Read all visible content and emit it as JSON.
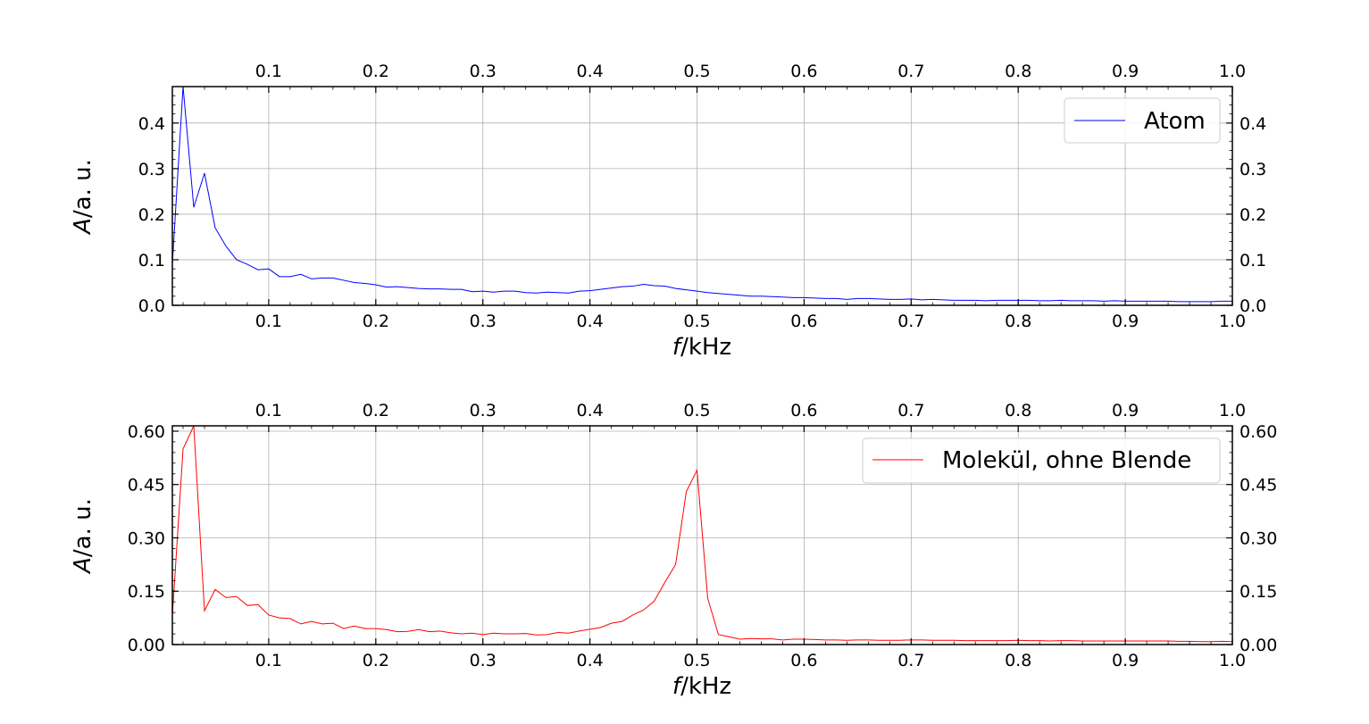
{
  "chart_data": [
    {
      "type": "line",
      "xlabel_italic": "f",
      "xlabel_rest": "/kHz",
      "ylabel_italic": "A",
      "ylabel_rest": "/a. u.",
      "xlim": [
        0.01,
        1.0
      ],
      "ylim": [
        0,
        0.48
      ],
      "xticks": [
        0.1,
        0.2,
        0.3,
        0.4,
        0.5,
        0.6,
        0.7,
        0.8,
        0.9,
        1.0
      ],
      "xtick_labels": [
        "0.1",
        "0.2",
        "0.3",
        "0.4",
        "0.5",
        "0.6",
        "0.7",
        "0.8",
        "0.9",
        "1.0"
      ],
      "yticks": [
        0.0,
        0.1,
        0.2,
        0.3,
        0.4
      ],
      "ytick_labels": [
        "0.0",
        "0.1",
        "0.2",
        "0.3",
        "0.4"
      ],
      "grid": true,
      "legend_position": "top-right",
      "color": "#0000ff",
      "series": [
        {
          "name": "Atom",
          "x": [
            0.01,
            0.02,
            0.03,
            0.04,
            0.05,
            0.06,
            0.07,
            0.08,
            0.09,
            0.1,
            0.11,
            0.12,
            0.13,
            0.14,
            0.15,
            0.16,
            0.17,
            0.18,
            0.19,
            0.2,
            0.21,
            0.22,
            0.23,
            0.24,
            0.25,
            0.26,
            0.27,
            0.28,
            0.29,
            0.3,
            0.31,
            0.32,
            0.33,
            0.34,
            0.35,
            0.36,
            0.37,
            0.38,
            0.39,
            0.4,
            0.41,
            0.42,
            0.43,
            0.44,
            0.45,
            0.46,
            0.47,
            0.48,
            0.49,
            0.5,
            0.51,
            0.52,
            0.53,
            0.54,
            0.55,
            0.56,
            0.57,
            0.58,
            0.59,
            0.6,
            0.61,
            0.62,
            0.63,
            0.64,
            0.65,
            0.66,
            0.67,
            0.68,
            0.69,
            0.7,
            0.71,
            0.72,
            0.73,
            0.74,
            0.75,
            0.76,
            0.77,
            0.78,
            0.79,
            0.8,
            0.81,
            0.82,
            0.83,
            0.84,
            0.85,
            0.86,
            0.87,
            0.88,
            0.89,
            0.9,
            0.91,
            0.92,
            0.93,
            0.94,
            0.95,
            0.96,
            0.97,
            0.98,
            0.99,
            1.0
          ],
          "y": [
            0.09,
            0.48,
            0.215,
            0.29,
            0.17,
            0.13,
            0.1,
            0.09,
            0.078,
            0.08,
            0.063,
            0.063,
            0.068,
            0.058,
            0.06,
            0.06,
            0.055,
            0.05,
            0.048,
            0.045,
            0.04,
            0.041,
            0.039,
            0.037,
            0.036,
            0.036,
            0.035,
            0.035,
            0.03,
            0.031,
            0.029,
            0.031,
            0.031,
            0.028,
            0.027,
            0.029,
            0.028,
            0.027,
            0.031,
            0.032,
            0.035,
            0.038,
            0.041,
            0.042,
            0.046,
            0.043,
            0.042,
            0.037,
            0.034,
            0.031,
            0.028,
            0.026,
            0.024,
            0.022,
            0.02,
            0.02,
            0.019,
            0.018,
            0.017,
            0.017,
            0.016,
            0.015,
            0.015,
            0.013,
            0.015,
            0.015,
            0.014,
            0.013,
            0.013,
            0.014,
            0.012,
            0.013,
            0.012,
            0.011,
            0.011,
            0.011,
            0.01,
            0.011,
            0.011,
            0.011,
            0.011,
            0.01,
            0.01,
            0.011,
            0.01,
            0.01,
            0.01,
            0.009,
            0.01,
            0.009,
            0.009,
            0.009,
            0.009,
            0.009,
            0.008,
            0.008,
            0.008,
            0.008,
            0.009,
            0.009
          ]
        }
      ]
    },
    {
      "type": "line",
      "xlabel_italic": "f",
      "xlabel_rest": "/kHz",
      "ylabel_italic": "A",
      "ylabel_rest": "/a. u.",
      "xlim": [
        0.01,
        1.0
      ],
      "ylim": [
        0,
        0.615
      ],
      "xticks": [
        0.1,
        0.2,
        0.3,
        0.4,
        0.5,
        0.6,
        0.7,
        0.8,
        0.9,
        1.0
      ],
      "xtick_labels": [
        "0.1",
        "0.2",
        "0.3",
        "0.4",
        "0.5",
        "0.6",
        "0.7",
        "0.8",
        "0.9",
        "1.0"
      ],
      "yticks": [
        0.0,
        0.15,
        0.3,
        0.45,
        0.6
      ],
      "ytick_labels": [
        "0.00",
        "0.15",
        "0.30",
        "0.45",
        "0.60"
      ],
      "grid": true,
      "legend_position": "top-right",
      "color": "#ff0000",
      "series": [
        {
          "name": "Molekül, ohne Blende",
          "x": [
            0.01,
            0.02,
            0.03,
            0.04,
            0.05,
            0.06,
            0.07,
            0.08,
            0.09,
            0.1,
            0.11,
            0.12,
            0.13,
            0.14,
            0.15,
            0.16,
            0.17,
            0.18,
            0.19,
            0.2,
            0.21,
            0.22,
            0.23,
            0.24,
            0.25,
            0.26,
            0.27,
            0.28,
            0.29,
            0.3,
            0.31,
            0.32,
            0.33,
            0.34,
            0.35,
            0.36,
            0.37,
            0.38,
            0.39,
            0.4,
            0.41,
            0.42,
            0.43,
            0.44,
            0.45,
            0.46,
            0.47,
            0.48,
            0.49,
            0.5,
            0.51,
            0.52,
            0.53,
            0.54,
            0.55,
            0.56,
            0.57,
            0.58,
            0.59,
            0.6,
            0.61,
            0.62,
            0.63,
            0.64,
            0.65,
            0.66,
            0.67,
            0.68,
            0.69,
            0.7,
            0.71,
            0.72,
            0.73,
            0.74,
            0.75,
            0.76,
            0.77,
            0.78,
            0.79,
            0.8,
            0.81,
            0.82,
            0.83,
            0.84,
            0.85,
            0.86,
            0.87,
            0.88,
            0.89,
            0.9,
            0.91,
            0.92,
            0.93,
            0.94,
            0.95,
            0.96,
            0.97,
            0.98,
            0.99,
            1.0
          ],
          "y": [
            0.08,
            0.55,
            0.615,
            0.095,
            0.155,
            0.132,
            0.135,
            0.11,
            0.112,
            0.083,
            0.075,
            0.073,
            0.058,
            0.065,
            0.058,
            0.06,
            0.045,
            0.052,
            0.045,
            0.045,
            0.042,
            0.036,
            0.037,
            0.042,
            0.036,
            0.038,
            0.033,
            0.03,
            0.032,
            0.028,
            0.032,
            0.03,
            0.03,
            0.031,
            0.027,
            0.028,
            0.034,
            0.032,
            0.038,
            0.043,
            0.048,
            0.06,
            0.065,
            0.083,
            0.097,
            0.122,
            0.175,
            0.225,
            0.43,
            0.49,
            0.13,
            0.028,
            0.022,
            0.015,
            0.017,
            0.016,
            0.016,
            0.013,
            0.015,
            0.015,
            0.014,
            0.013,
            0.013,
            0.012,
            0.013,
            0.013,
            0.012,
            0.012,
            0.012,
            0.013,
            0.013,
            0.012,
            0.012,
            0.012,
            0.011,
            0.011,
            0.011,
            0.011,
            0.011,
            0.012,
            0.011,
            0.011,
            0.01,
            0.011,
            0.011,
            0.01,
            0.01,
            0.01,
            0.01,
            0.01,
            0.01,
            0.01,
            0.01,
            0.01,
            0.009,
            0.009,
            0.008,
            0.008,
            0.009,
            0.008
          ]
        }
      ]
    }
  ]
}
